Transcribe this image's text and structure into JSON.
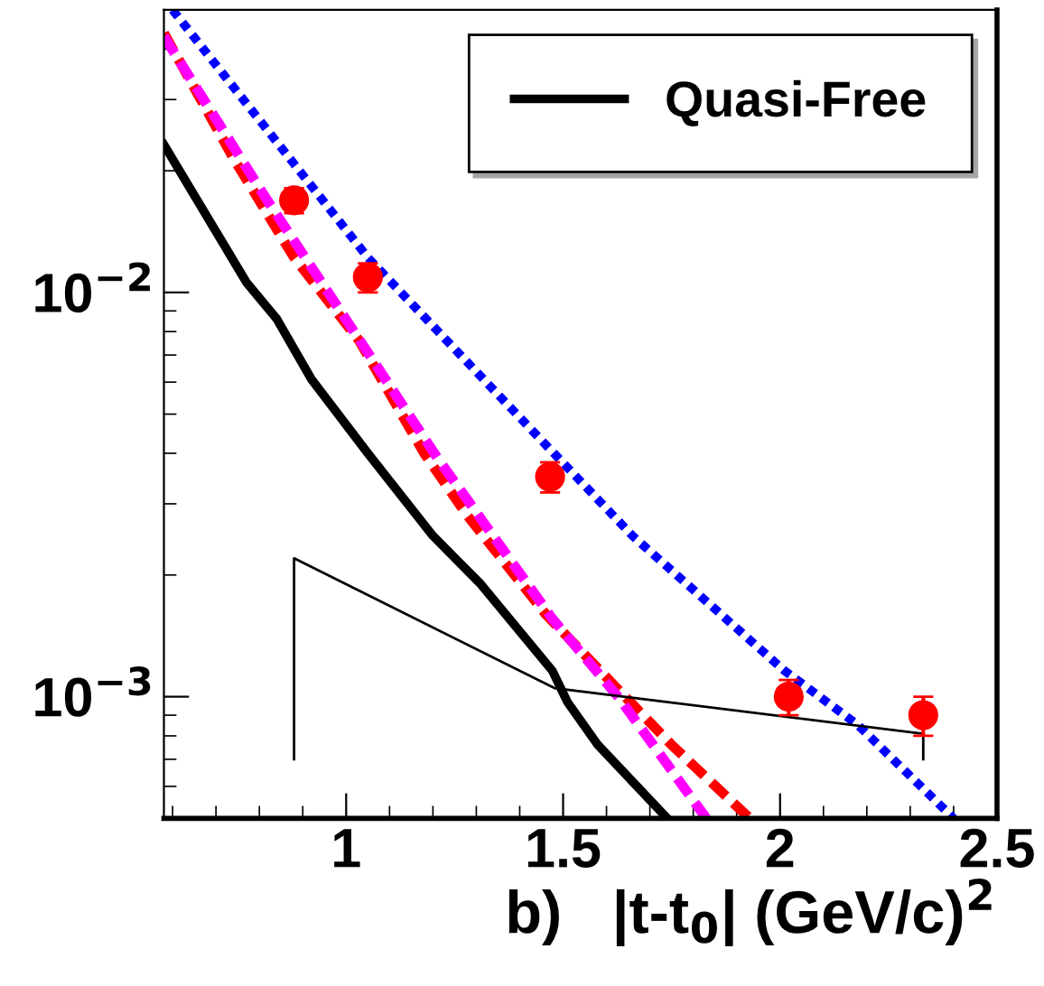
{
  "chart_data": {
    "type": "line",
    "xlabel": "b)   |t-t$_{0}$| (GeV/c)$^{2}$",
    "log": "y",
    "xlim": [
      0.58,
      2.5
    ],
    "xticks": [
      1,
      1.5,
      2,
      2.5
    ],
    "ylim": [
      0.0005,
      0.05
    ],
    "yticks": [
      {
        "value": 0.01,
        "label": "10$^{−2}$"
      },
      {
        "value": 0.001,
        "label": "10$^{−3}$"
      }
    ],
    "grid": false,
    "legend": "top right",
    "series": [
      {
        "name": "Quasi-Free",
        "color": "#000000",
        "line_style": "solid",
        "x": [
          0.58,
          0.77,
          0.84,
          0.92,
          1.05,
          1.2,
          1.31,
          1.475,
          1.51,
          1.58,
          1.74
        ],
        "values": [
          0.0232,
          0.0106,
          0.0086,
          0.0061,
          0.004,
          0.0025,
          0.0019,
          0.00116,
          0.00097,
          0.00076,
          0.0005
        ]
      },
      {
        "color": "#ff0000",
        "line_style": "dashed",
        "x": [
          0.58,
          0.74,
          0.88,
          1.03,
          1.18,
          1.28,
          1.46,
          1.62,
          1.75,
          1.93
        ],
        "values": [
          0.0438,
          0.0215,
          0.0122,
          0.0076,
          0.004,
          0.0028,
          0.0016,
          0.00106,
          0.00076,
          0.0005
        ]
      },
      {
        "color": "#ff00ff",
        "line_style": "dashed",
        "x": [
          0.58,
          0.815,
          1.05,
          1.21,
          1.475,
          1.63,
          1.74,
          1.83
        ],
        "values": [
          0.043,
          0.0171,
          0.0071,
          0.0039,
          0.00156,
          0.00099,
          0.00068,
          0.0005
        ]
      },
      {
        "color": "#0000ff",
        "line_style": "dotted",
        "x": [
          0.6,
          1.05,
          1.46,
          1.66,
          2.01,
          2.18,
          2.4
        ],
        "values": [
          0.05,
          0.0122,
          0.0042,
          0.0025,
          0.00116,
          0.00085,
          0.0005
        ]
      },
      {
        "color": "#000000",
        "line_style": "solid",
        "x": [
          0.88,
          0.88,
          1.48,
          2.33,
          2.33
        ],
        "values": [
          0.0007,
          0.0022,
          0.00105,
          0.00081,
          0.0007
        ]
      },
      {
        "type": "scatter",
        "color": "#ff0000",
        "marker": "circle",
        "x": [
          0.88,
          1.05,
          1.47,
          2.02,
          2.33
        ],
        "values": [
          0.0169,
          0.0109,
          0.0035,
          0.001,
          0.0009
        ],
        "errors": [
          0.0012,
          0.0009,
          0.0003,
          [
            0.0009,
            0.0011
          ],
          0.0001
        ]
      }
    ]
  }
}
